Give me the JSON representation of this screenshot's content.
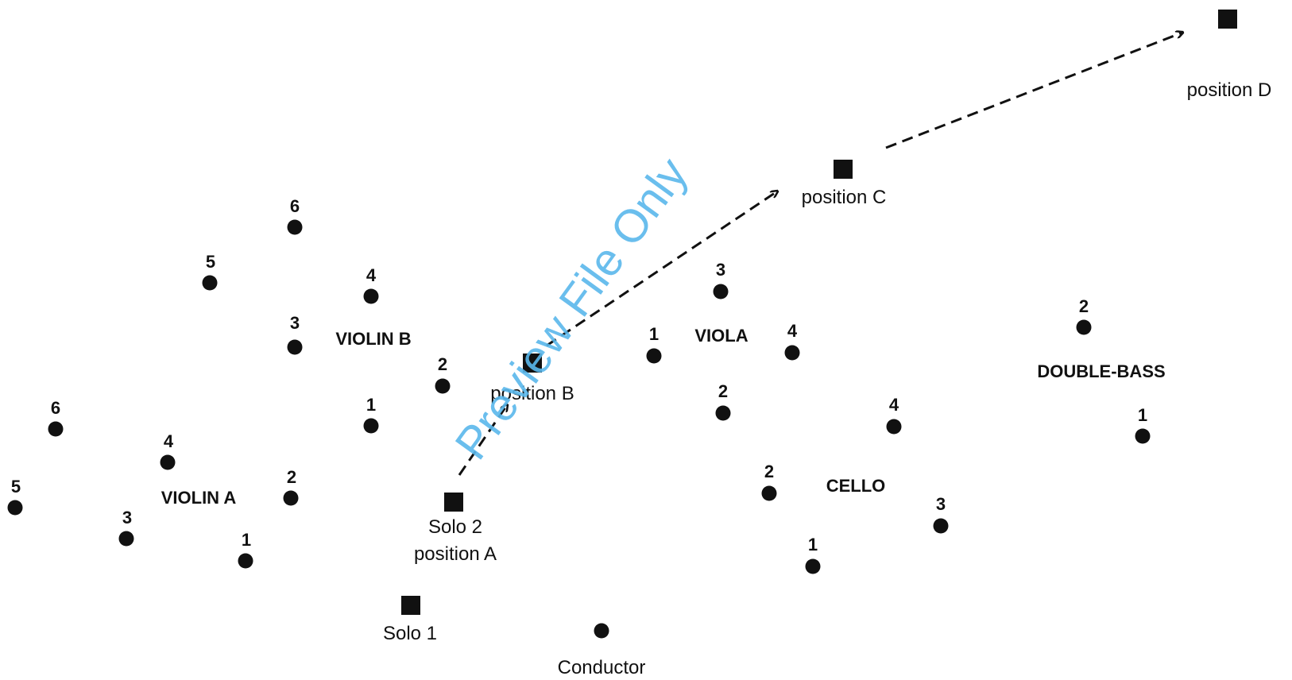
{
  "sections": {
    "violin_a": "VIOLIN A",
    "violin_b": "VIOLIN B",
    "viola": "VIOLA",
    "cello": "CELLO",
    "double_bass": "DOUBLE-BASS"
  },
  "players": {
    "violin_a": [
      "1",
      "2",
      "3",
      "4",
      "5",
      "6"
    ],
    "violin_b": [
      "1",
      "2",
      "3",
      "4",
      "5",
      "6"
    ],
    "viola": [
      "1",
      "2",
      "3",
      "4"
    ],
    "cello": [
      "1",
      "2",
      "3",
      "4"
    ],
    "double_bass": [
      "1",
      "2"
    ]
  },
  "positions": {
    "solo1": "Solo 1",
    "solo2": "Solo 2",
    "a": "position A",
    "b": "position B",
    "c": "position C",
    "d": "position D"
  },
  "conductor": "Conductor",
  "watermark": "Preview File Only",
  "colors": {
    "ink": "#111111",
    "watermark": "#5ab8ec"
  }
}
